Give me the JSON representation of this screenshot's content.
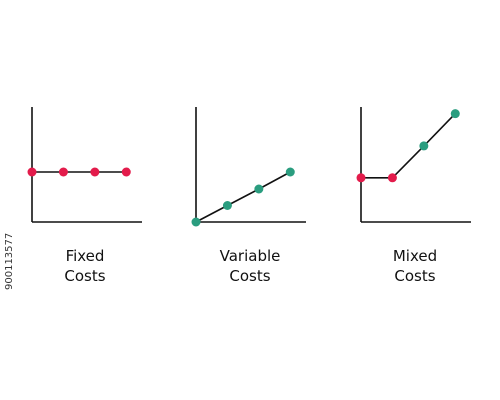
{
  "chart_data": [
    {
      "type": "line",
      "title_lines": [
        "Fixed",
        "Costs"
      ],
      "x": [
        0,
        1,
        2,
        3
      ],
      "series": [
        {
          "values": [
            1,
            1,
            1,
            1
          ]
        }
      ],
      "xlim": [
        0,
        3.5
      ],
      "ylim": [
        0,
        2.3
      ],
      "point_colors": [
        "#e31b4b",
        "#e31b4b",
        "#e31b4b",
        "#e31b4b"
      ],
      "grid": false
    },
    {
      "type": "line",
      "title_lines": [
        "Variable",
        "Costs"
      ],
      "x": [
        0,
        1,
        2,
        3
      ],
      "series": [
        {
          "values": [
            0,
            0.33,
            0.66,
            1
          ]
        }
      ],
      "xlim": [
        0,
        3.5
      ],
      "ylim": [
        0,
        2.3
      ],
      "point_colors": [
        "#2a9d7f",
        "#2a9d7f",
        "#2a9d7f",
        "#2a9d7f"
      ],
      "grid": false
    },
    {
      "type": "line",
      "title_lines": [
        "Mixed",
        "Costs"
      ],
      "x": [
        0,
        1,
        2,
        3
      ],
      "series": [
        {
          "values": [
            1,
            1,
            1.72,
            2.45
          ]
        }
      ],
      "xlim": [
        0,
        3.5
      ],
      "ylim": [
        0,
        2.6
      ],
      "point_colors": [
        "#e31b4b",
        "#e31b4b",
        "#2a9d7f",
        "#2a9d7f"
      ],
      "grid": false
    }
  ],
  "colors": {
    "fixed": "#e31b4b",
    "variable": "#2a9d7f",
    "axis": "#111111"
  },
  "watermark": "900113577"
}
